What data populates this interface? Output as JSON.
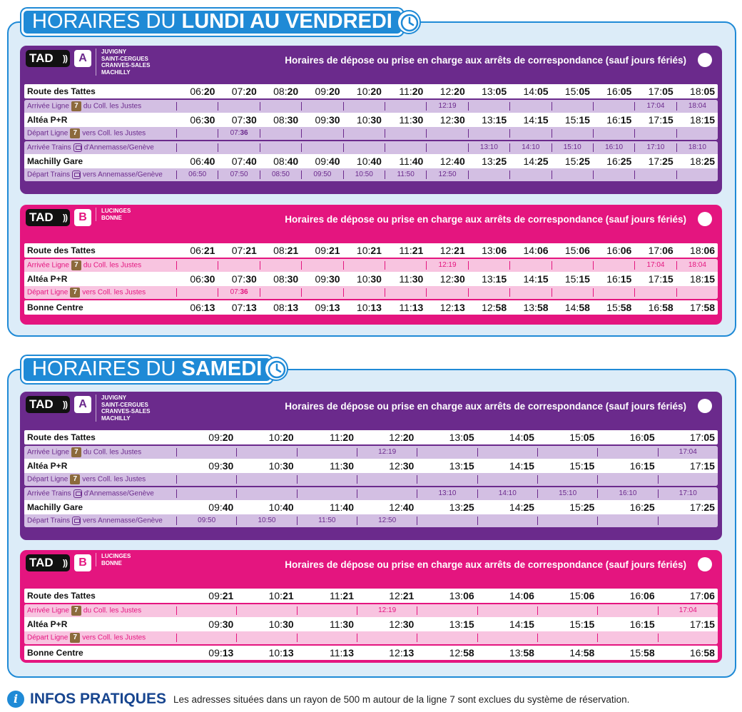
{
  "sections": [
    {
      "title_pre": "HORAIRES DU ",
      "title_bold": "LUNDI AU VENDREDI"
    },
    {
      "title_pre": "HORAIRES DU ",
      "title_bold": "SAMEDI"
    }
  ],
  "tad_label": "TAD",
  "panel_header": "Horaires de dépose ou prise en charge aux arrêts de correspondance (sauf jours fériés)",
  "zones": {
    "A": [
      "JUVIGNY",
      "SAINT-CERGUES",
      "CRANVES-SALES",
      "MACHILLY"
    ],
    "B": [
      "LUCINGES",
      "BONNE"
    ]
  },
  "labels": {
    "route_tattes": "Route des Tattes",
    "arr_l7_pre": "Arrivée Ligne",
    "arr_l7_post": "du Coll. les Justes",
    "altea": "Altéa P+R",
    "dep_l7_pre": "Départ Ligne",
    "dep_l7_post": "vers Coll. les Justes",
    "arr_tr_pre": "Arrivée Trains",
    "arr_tr_post": "d'Annemasse/Genève",
    "machilly": "Machilly Gare",
    "dep_tr_pre": "Départ Trains",
    "dep_tr_post": "vers Annemasse/Genève",
    "bonne": "Bonne Centre",
    "line7": "7"
  },
  "weekday": {
    "A": {
      "route": [
        [
          "06:",
          "20"
        ],
        [
          "07:",
          "20"
        ],
        [
          "08:",
          "20"
        ],
        [
          "09:",
          "20"
        ],
        [
          "10:",
          "20"
        ],
        [
          "11:",
          "20"
        ],
        [
          "12:",
          "20"
        ],
        [
          "13:",
          "05"
        ],
        [
          "14:",
          "05"
        ],
        [
          "15:",
          "05"
        ],
        [
          "16:",
          "05"
        ],
        [
          "17:",
          "05"
        ],
        [
          "18:",
          "05"
        ]
      ],
      "arr7": [
        "",
        "",
        "",
        "",
        "",
        "",
        "12:19",
        "",
        "",
        "",
        "",
        "17:04",
        "18:04"
      ],
      "altea": [
        [
          "06:",
          "30"
        ],
        [
          "07:",
          "30"
        ],
        [
          "08:",
          "30"
        ],
        [
          "09:",
          "30"
        ],
        [
          "10:",
          "30"
        ],
        [
          "11:",
          "30"
        ],
        [
          "12:",
          "30"
        ],
        [
          "13:",
          "15"
        ],
        [
          "14:",
          "15"
        ],
        [
          "15:",
          "15"
        ],
        [
          "16:",
          "15"
        ],
        [
          "17:",
          "15"
        ],
        [
          "18:",
          "15"
        ]
      ],
      "dep7": [
        [
          "",
          ""
        ],
        [
          "07:",
          "36"
        ],
        [
          "",
          ""
        ],
        [
          "",
          ""
        ],
        [
          "",
          ""
        ],
        [
          "",
          ""
        ],
        [
          "",
          ""
        ],
        [
          "",
          ""
        ],
        [
          "",
          ""
        ],
        [
          "",
          ""
        ],
        [
          "",
          ""
        ],
        [
          "",
          ""
        ],
        [
          "",
          ""
        ]
      ],
      "arrtr": [
        "",
        "",
        "",
        "",
        "",
        "",
        "",
        "13:10",
        "14:10",
        "15:10",
        "16:10",
        "17:10",
        "18:10"
      ],
      "machilly": [
        [
          "06:",
          "40"
        ],
        [
          "07:",
          "40"
        ],
        [
          "08:",
          "40"
        ],
        [
          "09:",
          "40"
        ],
        [
          "10:",
          "40"
        ],
        [
          "11:",
          "40"
        ],
        [
          "12:",
          "40"
        ],
        [
          "13:",
          "25"
        ],
        [
          "14:",
          "25"
        ],
        [
          "15:",
          "25"
        ],
        [
          "16:",
          "25"
        ],
        [
          "17:",
          "25"
        ],
        [
          "18:",
          "25"
        ]
      ],
      "deptr": [
        "06:50",
        "07:50",
        "08:50",
        "09:50",
        "10:50",
        "11:50",
        "12:50",
        "",
        "",
        "",
        "",
        "",
        ""
      ]
    },
    "B": {
      "route": [
        [
          "06:",
          "21"
        ],
        [
          "07:",
          "21"
        ],
        [
          "08:",
          "21"
        ],
        [
          "09:",
          "21"
        ],
        [
          "10:",
          "21"
        ],
        [
          "11:",
          "21"
        ],
        [
          "12:",
          "21"
        ],
        [
          "13:",
          "06"
        ],
        [
          "14:",
          "06"
        ],
        [
          "15:",
          "06"
        ],
        [
          "16:",
          "06"
        ],
        [
          "17:",
          "06"
        ],
        [
          "18:",
          "06"
        ]
      ],
      "arr7": [
        "",
        "",
        "",
        "",
        "",
        "",
        "12:19",
        "",
        "",
        "",
        "",
        "17:04",
        "18:04"
      ],
      "altea": [
        [
          "06:",
          "30"
        ],
        [
          "07:",
          "30"
        ],
        [
          "08:",
          "30"
        ],
        [
          "09:",
          "30"
        ],
        [
          "10:",
          "30"
        ],
        [
          "11:",
          "30"
        ],
        [
          "12:",
          "30"
        ],
        [
          "13:",
          "15"
        ],
        [
          "14:",
          "15"
        ],
        [
          "15:",
          "15"
        ],
        [
          "16:",
          "15"
        ],
        [
          "17:",
          "15"
        ],
        [
          "18:",
          "15"
        ]
      ],
      "dep7": [
        [
          "",
          ""
        ],
        [
          "07:",
          "36"
        ],
        [
          "",
          ""
        ],
        [
          "",
          ""
        ],
        [
          "",
          ""
        ],
        [
          "",
          ""
        ],
        [
          "",
          ""
        ],
        [
          "",
          ""
        ],
        [
          "",
          ""
        ],
        [
          "",
          ""
        ],
        [
          "",
          ""
        ],
        [
          "",
          ""
        ],
        [
          "",
          ""
        ]
      ],
      "bonne": [
        [
          "06:",
          "13"
        ],
        [
          "07:",
          "13"
        ],
        [
          "08:",
          "13"
        ],
        [
          "09:",
          "13"
        ],
        [
          "10:",
          "13"
        ],
        [
          "11:",
          "13"
        ],
        [
          "12:",
          "13"
        ],
        [
          "12:",
          "58"
        ],
        [
          "13:",
          "58"
        ],
        [
          "14:",
          "58"
        ],
        [
          "15:",
          "58"
        ],
        [
          "16:",
          "58"
        ],
        [
          "17:",
          "58"
        ]
      ]
    }
  },
  "saturday": {
    "A": {
      "route": [
        [
          "09:",
          "20"
        ],
        [
          "10:",
          "20"
        ],
        [
          "11:",
          "20"
        ],
        [
          "12:",
          "20"
        ],
        [
          "13:",
          "05"
        ],
        [
          "14:",
          "05"
        ],
        [
          "15:",
          "05"
        ],
        [
          "16:",
          "05"
        ],
        [
          "17:",
          "05"
        ]
      ],
      "arr7": [
        "",
        "",
        "",
        "12:19",
        "",
        "",
        "",
        "",
        "17:04"
      ],
      "altea": [
        [
          "09:",
          "30"
        ],
        [
          "10:",
          "30"
        ],
        [
          "11:",
          "30"
        ],
        [
          "12:",
          "30"
        ],
        [
          "13:",
          "15"
        ],
        [
          "14:",
          "15"
        ],
        [
          "15:",
          "15"
        ],
        [
          "16:",
          "15"
        ],
        [
          "17:",
          "15"
        ]
      ],
      "dep7": [
        [
          "",
          ""
        ],
        [
          "",
          ""
        ],
        [
          "",
          ""
        ],
        [
          "",
          ""
        ],
        [
          "",
          ""
        ],
        [
          "",
          ""
        ],
        [
          "",
          ""
        ],
        [
          "",
          ""
        ],
        [
          "",
          ""
        ]
      ],
      "arrtr": [
        "",
        "",
        "",
        "",
        "13:10",
        "14:10",
        "15:10",
        "16:10",
        "17:10"
      ],
      "machilly": [
        [
          "09:",
          "40"
        ],
        [
          "10:",
          "40"
        ],
        [
          "11:",
          "40"
        ],
        [
          "12:",
          "40"
        ],
        [
          "13:",
          "25"
        ],
        [
          "14:",
          "25"
        ],
        [
          "15:",
          "25"
        ],
        [
          "16:",
          "25"
        ],
        [
          "17:",
          "25"
        ]
      ],
      "deptr": [
        "09:50",
        "10:50",
        "11:50",
        "12:50",
        "",
        "",
        "",
        "",
        ""
      ]
    },
    "B": {
      "route": [
        [
          "09:",
          "21"
        ],
        [
          "10:",
          "21"
        ],
        [
          "11:",
          "21"
        ],
        [
          "12:",
          "21"
        ],
        [
          "13:",
          "06"
        ],
        [
          "14:",
          "06"
        ],
        [
          "15:",
          "06"
        ],
        [
          "16:",
          "06"
        ],
        [
          "17:",
          "06"
        ]
      ],
      "arr7": [
        "",
        "",
        "",
        "12:19",
        "",
        "",
        "",
        "",
        "17:04"
      ],
      "altea": [
        [
          "09:",
          "30"
        ],
        [
          "10:",
          "30"
        ],
        [
          "11:",
          "30"
        ],
        [
          "12:",
          "30"
        ],
        [
          "13:",
          "15"
        ],
        [
          "14:",
          "15"
        ],
        [
          "15:",
          "15"
        ],
        [
          "16:",
          "15"
        ],
        [
          "17:",
          "15"
        ]
      ],
      "dep7": [
        [
          "",
          ""
        ],
        [
          "",
          ""
        ],
        [
          "",
          ""
        ],
        [
          "",
          ""
        ],
        [
          "",
          ""
        ],
        [
          "",
          ""
        ],
        [
          "",
          ""
        ],
        [
          "",
          ""
        ],
        [
          "",
          ""
        ]
      ],
      "bonne": [
        [
          "09:",
          "13"
        ],
        [
          "10:",
          "13"
        ],
        [
          "11:",
          "13"
        ],
        [
          "12:",
          "13"
        ],
        [
          "12:",
          "58"
        ],
        [
          "13:",
          "58"
        ],
        [
          "14:",
          "58"
        ],
        [
          "15:",
          "58"
        ],
        [
          "16:",
          "58"
        ]
      ]
    }
  },
  "footer": {
    "icon": "i",
    "title": "INFOS PRATIQUES",
    "text": "Les adresses situées dans un rayon de 500 m autour de la ligne 7 sont exclues du système de réservation."
  },
  "colors": {
    "blue": "#1f8ad6",
    "purple": "#6b2a8c",
    "pink": "#e4157f",
    "line7": "#8c6a3c"
  }
}
